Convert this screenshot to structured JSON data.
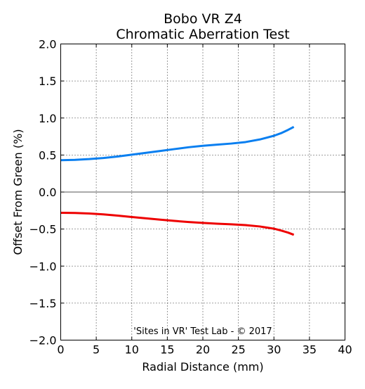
{
  "chart_data": {
    "type": "line",
    "title": "Bobo VR Z4",
    "subtitle": "Chromatic Aberration Test",
    "xlabel": "Radial Distance (mm)",
    "ylabel": "Offset From Green (%)",
    "xlim": [
      0,
      40
    ],
    "ylim": [
      -2.0,
      2.0
    ],
    "x_ticks": [
      0,
      5,
      10,
      15,
      20,
      25,
      30,
      35,
      40
    ],
    "x_tick_labels": [
      "0",
      "5",
      "10",
      "15",
      "20",
      "25",
      "30",
      "35",
      "40"
    ],
    "y_ticks": [
      -2.0,
      -1.5,
      -1.0,
      -0.5,
      0.0,
      0.5,
      1.0,
      1.5,
      2.0
    ],
    "y_tick_labels": [
      "−2.0",
      "−1.5",
      "−1.0",
      "−0.5",
      "0.0",
      "0.5",
      "1.0",
      "1.5",
      "2.0"
    ],
    "grid": true,
    "zero_line": true,
    "annotation": "'Sites in VR' Test Lab - © 2017",
    "series": [
      {
        "color": "#0a7ff0",
        "x": [
          0,
          2,
          4,
          6,
          8,
          10,
          12,
          14,
          16,
          18,
          20,
          22,
          24,
          26,
          28,
          30,
          31,
          32,
          32.8
        ],
        "y": [
          0.43,
          0.435,
          0.445,
          0.46,
          0.48,
          0.505,
          0.53,
          0.555,
          0.58,
          0.605,
          0.625,
          0.64,
          0.655,
          0.675,
          0.71,
          0.76,
          0.795,
          0.84,
          0.88
        ]
      },
      {
        "color": "#ee0000",
        "x": [
          0,
          2,
          4,
          6,
          8,
          10,
          12,
          14,
          16,
          18,
          20,
          22,
          24,
          26,
          28,
          30,
          31,
          32,
          32.8
        ],
        "y": [
          -0.28,
          -0.283,
          -0.29,
          -0.302,
          -0.318,
          -0.337,
          -0.355,
          -0.373,
          -0.39,
          -0.405,
          -0.417,
          -0.427,
          -0.436,
          -0.447,
          -0.465,
          -0.495,
          -0.52,
          -0.548,
          -0.578
        ]
      }
    ]
  }
}
